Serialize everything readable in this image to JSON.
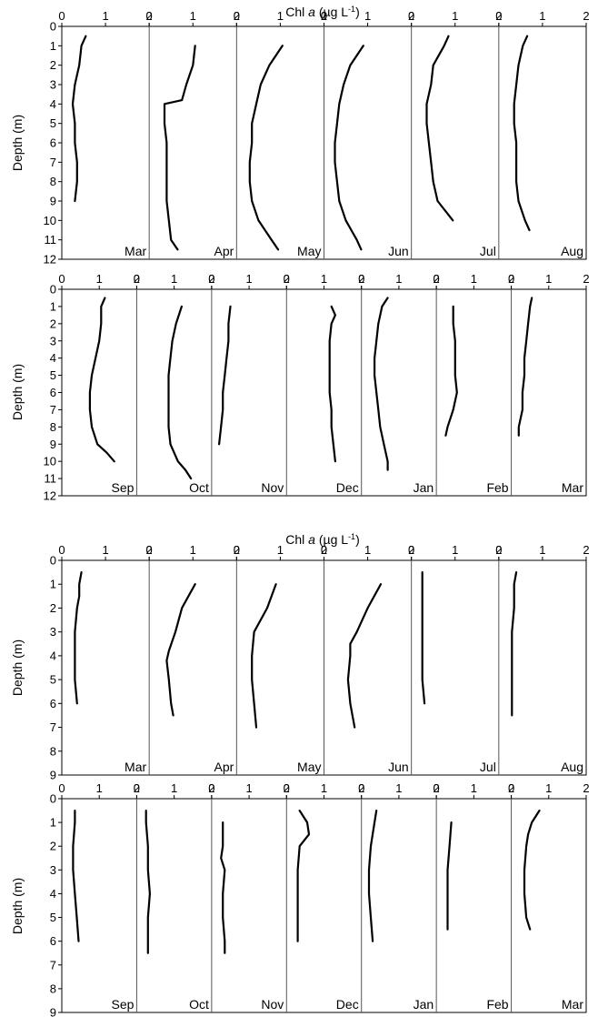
{
  "figure": {
    "title_top": "Chl a (µg L-1)",
    "title_bottom": "Chl a (µg L-1)",
    "ylabel": "Depth (m)"
  },
  "chart_data": [
    {
      "type": "line",
      "title": "Chl a (µg L-1)",
      "xlabel": "Chl a (µg L-1)",
      "ylabel": "Depth (m)",
      "xlim": [
        0,
        2
      ],
      "ylim": [
        0,
        12
      ],
      "x_ticks": [
        "0",
        "1",
        "2"
      ],
      "y_ticks": [
        "0",
        "1",
        "2",
        "3",
        "4",
        "5",
        "6",
        "7",
        "8",
        "9",
        "10",
        "11",
        "12"
      ],
      "panels": [
        {
          "month": "Mar",
          "depth": [
            0.5,
            1,
            2,
            3,
            4,
            5,
            6,
            7,
            8,
            9
          ],
          "chl": [
            0.55,
            0.45,
            0.4,
            0.3,
            0.25,
            0.3,
            0.3,
            0.35,
            0.35,
            0.3
          ]
        },
        {
          "month": "Apr",
          "depth": [
            1,
            2,
            3,
            3.8,
            4,
            5,
            6,
            7,
            8,
            9,
            10,
            11,
            11.5
          ],
          "chl": [
            1.05,
            1.0,
            0.85,
            0.75,
            0.35,
            0.35,
            0.4,
            0.4,
            0.4,
            0.4,
            0.45,
            0.5,
            0.65
          ]
        },
        {
          "month": "May",
          "depth": [
            1,
            2,
            3,
            4,
            5,
            6,
            7,
            8,
            9,
            10,
            11,
            11.5
          ],
          "chl": [
            1.05,
            0.75,
            0.55,
            0.45,
            0.35,
            0.35,
            0.3,
            0.3,
            0.35,
            0.5,
            0.8,
            0.95
          ]
        },
        {
          "month": "Jun",
          "depth": [
            1,
            2,
            3,
            4,
            5,
            6,
            7,
            8,
            9,
            10,
            11,
            11.5
          ],
          "chl": [
            0.9,
            0.6,
            0.45,
            0.35,
            0.3,
            0.25,
            0.25,
            0.3,
            0.35,
            0.5,
            0.75,
            0.85
          ]
        },
        {
          "month": "Jul",
          "depth": [
            0.5,
            1,
            2,
            3,
            4,
            5,
            6,
            7,
            8,
            9,
            10
          ],
          "chl": [
            0.85,
            0.75,
            0.5,
            0.45,
            0.35,
            0.35,
            0.4,
            0.45,
            0.5,
            0.6,
            0.95
          ]
        },
        {
          "month": "Aug",
          "depth": [
            0.5,
            1,
            2,
            3,
            4,
            5,
            6,
            7,
            8,
            9,
            10,
            10.5
          ],
          "chl": [
            0.65,
            0.55,
            0.45,
            0.4,
            0.35,
            0.35,
            0.4,
            0.4,
            0.4,
            0.45,
            0.6,
            0.7
          ]
        }
      ]
    },
    {
      "type": "line",
      "xlabel": "Chl a (µg L-1)",
      "ylabel": "Depth (m)",
      "xlim": [
        0,
        2
      ],
      "ylim": [
        0,
        12
      ],
      "x_ticks": [
        "0",
        "1",
        "2"
      ],
      "y_ticks": [
        "0",
        "1",
        "2",
        "3",
        "4",
        "5",
        "6",
        "7",
        "8",
        "9",
        "10",
        "11",
        "12"
      ],
      "panels": [
        {
          "month": "Sep",
          "depth": [
            0.5,
            1,
            2,
            3,
            4,
            5,
            6,
            7,
            8,
            9,
            9.5,
            10
          ],
          "chl": [
            1.15,
            1.05,
            1.05,
            1.0,
            0.9,
            0.8,
            0.75,
            0.75,
            0.8,
            0.95,
            1.2,
            1.4
          ]
        },
        {
          "month": "Oct",
          "depth": [
            1,
            2,
            3,
            4,
            5,
            6,
            7,
            8,
            9,
            10,
            10.5,
            11
          ],
          "chl": [
            1.2,
            1.05,
            0.95,
            0.9,
            0.85,
            0.85,
            0.85,
            0.85,
            0.9,
            1.1,
            1.3,
            1.45
          ]
        },
        {
          "month": "Nov",
          "depth": [
            1,
            2,
            3,
            4,
            5,
            6,
            7,
            8,
            9
          ],
          "chl": [
            0.5,
            0.45,
            0.45,
            0.4,
            0.35,
            0.3,
            0.3,
            0.25,
            0.2
          ]
        },
        {
          "month": "Dec",
          "depth": [
            1,
            1.5,
            2,
            3,
            4,
            5,
            6,
            7,
            8,
            9,
            10
          ],
          "chl": [
            1.2,
            1.3,
            1.2,
            1.15,
            1.15,
            1.15,
            1.15,
            1.2,
            1.2,
            1.25,
            1.3
          ]
        },
        {
          "month": "Jan",
          "depth": [
            0.5,
            1,
            2,
            3,
            4,
            5,
            6,
            7,
            8,
            9,
            10,
            10.5
          ],
          "chl": [
            0.7,
            0.55,
            0.45,
            0.4,
            0.35,
            0.35,
            0.4,
            0.45,
            0.5,
            0.6,
            0.7,
            0.7
          ]
        },
        {
          "month": "Feb",
          "depth": [
            1,
            2,
            3,
            4,
            5,
            6,
            7,
            8,
            8.5
          ],
          "chl": [
            0.45,
            0.45,
            0.5,
            0.5,
            0.5,
            0.55,
            0.45,
            0.3,
            0.25
          ]
        },
        {
          "month": "Mar",
          "depth": [
            0.5,
            1,
            2,
            3,
            4,
            5,
            6,
            7,
            8,
            8.5
          ],
          "chl": [
            0.55,
            0.5,
            0.45,
            0.4,
            0.35,
            0.35,
            0.3,
            0.3,
            0.2,
            0.2
          ]
        }
      ]
    },
    {
      "type": "line",
      "title": "Chl a (µg L-1)",
      "xlabel": "Chl a (µg L-1)",
      "ylabel": "Depth (m)",
      "xlim": [
        0,
        2
      ],
      "ylim": [
        0,
        9
      ],
      "x_ticks": [
        "0",
        "1",
        "2"
      ],
      "y_ticks": [
        "0",
        "1",
        "2",
        "3",
        "4",
        "5",
        "6",
        "7",
        "8",
        "9"
      ],
      "panels": [
        {
          "month": "Mar",
          "depth": [
            0.5,
            1,
            1.5,
            2,
            3,
            4,
            5,
            6
          ],
          "chl": [
            0.45,
            0.4,
            0.4,
            0.35,
            0.3,
            0.3,
            0.3,
            0.35
          ]
        },
        {
          "month": "Apr",
          "depth": [
            1,
            1.5,
            2,
            3,
            3.8,
            4.2,
            5,
            6,
            6.5
          ],
          "chl": [
            1.05,
            0.9,
            0.75,
            0.6,
            0.45,
            0.4,
            0.45,
            0.5,
            0.55
          ]
        },
        {
          "month": "May",
          "depth": [
            1,
            2,
            3,
            4,
            5,
            6,
            7
          ],
          "chl": [
            0.9,
            0.7,
            0.4,
            0.35,
            0.35,
            0.4,
            0.45
          ]
        },
        {
          "month": "Jun",
          "depth": [
            1,
            2,
            3,
            3.5,
            4,
            5,
            6,
            7
          ],
          "chl": [
            1.3,
            1.0,
            0.75,
            0.6,
            0.6,
            0.55,
            0.6,
            0.7
          ]
        },
        {
          "month": "Jul",
          "depth": [
            0.5,
            1,
            2,
            3,
            4,
            5,
            6
          ],
          "chl": [
            0.25,
            0.25,
            0.25,
            0.25,
            0.25,
            0.25,
            0.3
          ]
        },
        {
          "month": "Aug",
          "depth": [
            0.5,
            1,
            2,
            3,
            4,
            5,
            6,
            6.5
          ],
          "chl": [
            0.4,
            0.35,
            0.35,
            0.3,
            0.3,
            0.3,
            0.3,
            0.3
          ]
        }
      ]
    },
    {
      "type": "line",
      "xlabel": "Chl a (µg L-1)",
      "ylabel": "Depth (m)",
      "xlim": [
        0,
        2
      ],
      "ylim": [
        0,
        9
      ],
      "x_ticks": [
        "0",
        "1",
        "2"
      ],
      "y_ticks": [
        "0",
        "1",
        "2",
        "3",
        "4",
        "5",
        "6",
        "7",
        "8",
        "9"
      ],
      "panels": [
        {
          "month": "Sep",
          "depth": [
            0.5,
            1,
            2,
            3,
            4,
            5,
            6
          ],
          "chl": [
            0.35,
            0.35,
            0.3,
            0.3,
            0.35,
            0.4,
            0.45
          ]
        },
        {
          "month": "Oct",
          "depth": [
            0.5,
            1,
            2,
            3,
            4,
            5,
            6,
            6.5
          ],
          "chl": [
            0.25,
            0.25,
            0.3,
            0.3,
            0.35,
            0.3,
            0.3,
            0.3
          ]
        },
        {
          "month": "Nov",
          "depth": [
            1,
            2,
            2.5,
            3,
            4,
            5,
            6,
            6.5
          ],
          "chl": [
            0.3,
            0.3,
            0.25,
            0.35,
            0.3,
            0.3,
            0.35,
            0.35
          ]
        },
        {
          "month": "Dec",
          "depth": [
            0.5,
            1,
            1.5,
            2,
            3,
            4,
            5,
            6
          ],
          "chl": [
            0.35,
            0.55,
            0.6,
            0.35,
            0.3,
            0.3,
            0.3,
            0.3
          ]
        },
        {
          "month": "Jan",
          "depth": [
            0.5,
            1,
            2,
            3,
            4,
            5,
            6
          ],
          "chl": [
            0.4,
            0.35,
            0.25,
            0.2,
            0.2,
            0.25,
            0.3
          ]
        },
        {
          "month": "Feb",
          "depth": [
            1,
            2,
            3,
            4,
            5,
            5.5
          ],
          "chl": [
            0.4,
            0.35,
            0.3,
            0.3,
            0.3,
            0.3
          ]
        },
        {
          "month": "Mar",
          "depth": [
            0.5,
            1,
            1.5,
            2,
            3,
            4,
            5,
            5.5
          ],
          "chl": [
            0.75,
            0.55,
            0.45,
            0.4,
            0.35,
            0.35,
            0.4,
            0.5
          ]
        }
      ]
    }
  ]
}
